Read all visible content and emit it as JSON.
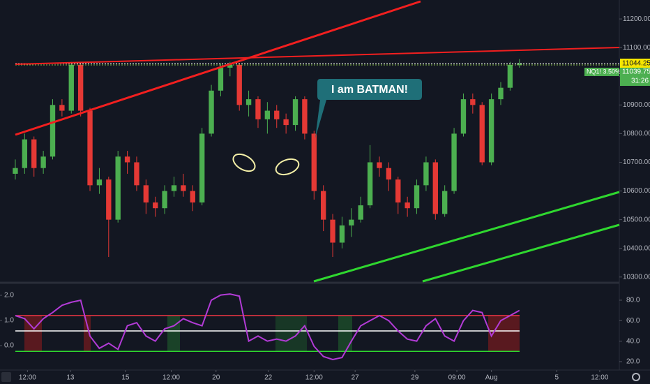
{
  "chart_data": [
    {
      "type": "candlestick",
      "open": [
        10660,
        10680,
        10780,
        10680,
        10720,
        10900,
        10880,
        11040,
        10880,
        10620,
        10640,
        10500,
        10720,
        10700,
        10620,
        10560,
        10540,
        10600,
        10620,
        10600,
        10560,
        10800,
        10950,
        11030,
        11040,
        10900,
        10920,
        10850,
        10880,
        10850,
        10830,
        10920,
        10800,
        10600,
        10500,
        10420,
        10480,
        10500,
        10550,
        10700,
        10680,
        10640,
        10560,
        10540,
        10620,
        10700,
        10520,
        10600,
        10800,
        10920,
        10900,
        10700,
        10920,
        10960,
        11040
      ],
      "high": [
        10710,
        10800,
        10790,
        10740,
        10920,
        10920,
        11050,
        11045,
        10890,
        10680,
        10650,
        10740,
        10740,
        10720,
        10640,
        10580,
        10620,
        10650,
        10660,
        10620,
        10820,
        10970,
        11045,
        11050,
        11045,
        10950,
        10930,
        10910,
        10900,
        10870,
        10930,
        10930,
        10810,
        10620,
        10520,
        10510,
        10540,
        10580,
        10760,
        10720,
        10700,
        10650,
        10580,
        10640,
        10720,
        10710,
        10620,
        10820,
        10940,
        10940,
        10910,
        10940,
        10980,
        11050,
        11060
      ],
      "low": [
        10640,
        10660,
        10650,
        10660,
        10710,
        10860,
        10870,
        10860,
        10600,
        10590,
        10370,
        10490,
        10660,
        10600,
        10520,
        10510,
        10520,
        10580,
        10580,
        10530,
        10550,
        10790,
        10930,
        11000,
        10880,
        10860,
        10820,
        10800,
        10820,
        10800,
        10810,
        10780,
        10570,
        10460,
        10370,
        10400,
        10440,
        10490,
        10540,
        10650,
        10600,
        10520,
        10510,
        10520,
        10600,
        10500,
        10510,
        10590,
        10790,
        10870,
        10690,
        10690,
        10900,
        10950,
        11030
      ],
      "close": [
        10680,
        10780,
        10680,
        10720,
        10900,
        10880,
        11040,
        10880,
        10620,
        10640,
        10500,
        10720,
        10700,
        10620,
        10560,
        10540,
        10600,
        10620,
        10600,
        10560,
        10800,
        10950,
        11030,
        11040,
        10900,
        10920,
        10850,
        10880,
        10850,
        10830,
        10920,
        10800,
        10600,
        10500,
        10420,
        10480,
        10500,
        10550,
        10700,
        10680,
        10640,
        10560,
        10540,
        10620,
        10700,
        10520,
        10600,
        10800,
        10920,
        10900,
        10700,
        10920,
        10960,
        11040,
        11044.25
      ],
      "up_color": "#4caf50",
      "down_color": "#e53935",
      "xlim": [
        -1.64,
        64.7
      ],
      "xticks": [
        {
          "value": 1.3,
          "label": "12:00"
        },
        {
          "value": 5.9,
          "label": "13"
        },
        {
          "value": 11.8,
          "label": "15"
        },
        {
          "value": 16.7,
          "label": "12:00"
        },
        {
          "value": 21.5,
          "label": "20"
        },
        {
          "value": 27.1,
          "label": "22"
        },
        {
          "value": 32.0,
          "label": "12:00"
        },
        {
          "value": 36.4,
          "label": "27"
        },
        {
          "value": 42.8,
          "label": "29"
        },
        {
          "value": 47.3,
          "label": "09:00"
        },
        {
          "value": 51.0,
          "label": "Aug"
        },
        {
          "value": 58.0,
          "label": "5"
        },
        {
          "value": 62.6,
          "label": "12:00"
        }
      ],
      "ylim": [
        10280,
        11266
      ],
      "yticks": [
        {
          "value": 10300,
          "label": "10300.00"
        },
        {
          "value": 10400,
          "label": "10400.00"
        },
        {
          "value": 10500,
          "label": "10500.00"
        },
        {
          "value": 10600,
          "label": "10600.00"
        },
        {
          "value": 10700,
          "label": "10700.00"
        },
        {
          "value": 10800,
          "label": "10800.00"
        },
        {
          "value": 10900,
          "label": "10900.00"
        },
        {
          "value": 11000,
          "label": "11000.00"
        },
        {
          "value": 11100,
          "label": "11100.00"
        },
        {
          "value": 11200,
          "label": "11200.00"
        }
      ],
      "last_price": "11044.25",
      "symbol_change": "NQ1! 3.50%",
      "symbol_price": "11039.75",
      "countdown": "31:26",
      "annotation": "I am BATMAN!"
    },
    {
      "type": "line",
      "xlim": [
        -1.64,
        64.7
      ],
      "ylim": [
        -0.97,
        2.36
      ],
      "yticks": [
        {
          "value": 0,
          "label": "0.0"
        },
        {
          "value": 1,
          "label": "1.0"
        },
        {
          "value": 2,
          "label": "2.0"
        }
      ],
      "y2lim": [
        11.8,
        93.6
      ],
      "y2ticks": [
        {
          "value": 20,
          "label": "20.0"
        },
        {
          "value": 40,
          "label": "40.0"
        },
        {
          "value": 60,
          "label": "60.0"
        },
        {
          "value": 80,
          "label": "80.0"
        }
      ],
      "levels": [
        {
          "value": 65,
          "color": "#f23645"
        },
        {
          "value": 50,
          "color": "#ffffff"
        },
        {
          "value": 30,
          "color": "#2fd72f"
        }
      ],
      "series": [
        {
          "color": "#b23bd6",
          "axis": "y2",
          "values": [
            65,
            62,
            52,
            62,
            68,
            75,
            78,
            80,
            45,
            33,
            38,
            32,
            55,
            58,
            45,
            40,
            52,
            55,
            62,
            58,
            55,
            80,
            85,
            86,
            84,
            40,
            45,
            40,
            42,
            40,
            45,
            55,
            35,
            25,
            22,
            24,
            40,
            55,
            60,
            65,
            60,
            50,
            42,
            40,
            55,
            62,
            45,
            40,
            60,
            70,
            68,
            45,
            60,
            65,
            70
          ]
        }
      ]
    }
  ]
}
